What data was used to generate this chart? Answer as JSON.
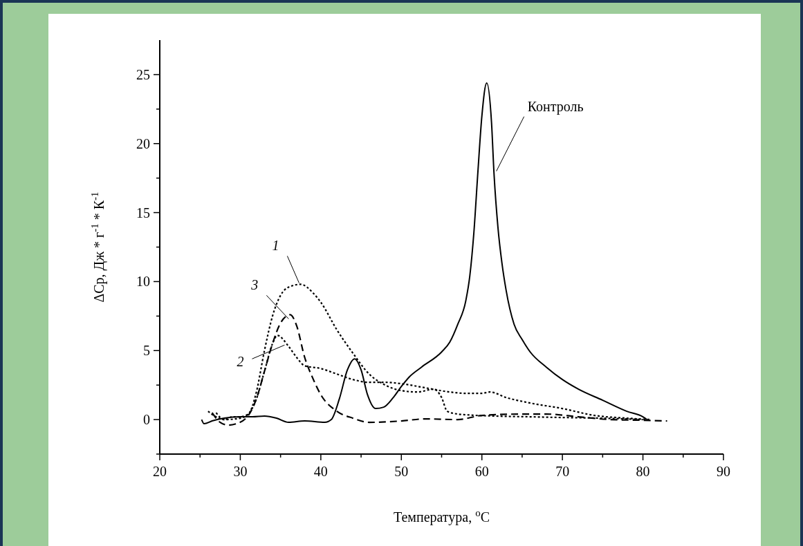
{
  "chart_data": {
    "type": "line",
    "xlabel": "Температура, $^{o}$C",
    "ylabel": "ΔCp, Дж * г$^{-1}$ * К$^{-1}$",
    "xlim": [
      20,
      90
    ],
    "xticks": [
      20,
      {
        "value": 25,
        "label": null
      },
      30,
      {
        "value": 35,
        "label": null
      },
      40,
      {
        "value": 45,
        "label": null
      },
      50,
      {
        "value": 55,
        "label": null
      },
      60,
      {
        "value": 65,
        "label": null
      },
      70,
      {
        "value": 75,
        "label": null
      },
      80,
      {
        "value": 85,
        "label": null
      },
      90
    ],
    "ylim": [
      -2.5,
      27.5
    ],
    "yticks": [
      {
        "value": -2.5,
        "label": null
      },
      0,
      {
        "value": 2.5,
        "label": null
      },
      5,
      {
        "value": 7.5,
        "label": null
      },
      10,
      {
        "value": 12.5,
        "label": null
      },
      15,
      {
        "value": 17.5,
        "label": null
      },
      20,
      {
        "value": 22.5,
        "label": null
      },
      25
    ],
    "grid": false,
    "marker": "none",
    "series": [
      {
        "color": "#000000",
        "line_style": "solid",
        "x": [
          25.2,
          25.5,
          26.5,
          28,
          30,
          31.5,
          33,
          34.5,
          36,
          38,
          40.5,
          41.3,
          42.3,
          43.3,
          44.2,
          45,
          45.8,
          46.8,
          47.8,
          49,
          50,
          51,
          52.5,
          55,
          56,
          57,
          58,
          58.5,
          59,
          59.5,
          60,
          60.6,
          61.2,
          61.5,
          62,
          62.5,
          63,
          64,
          65,
          66,
          68,
          70,
          72,
          75,
          78,
          80,
          80.5
        ],
        "values": [
          0,
          -0.3,
          -0.1,
          0.1,
          0.2,
          0.2,
          0.25,
          0.1,
          -0.2,
          -0.1,
          -0.2,
          0,
          1.5,
          3.6,
          4.4,
          3.6,
          1.8,
          0.8,
          0.9,
          1.6,
          2.4,
          3.1,
          3.8,
          4.9,
          5.6,
          6.9,
          8.6,
          10.4,
          13.5,
          17.9,
          22,
          24.4,
          21.5,
          17.9,
          13.9,
          11.3,
          9.4,
          6.9,
          5.8,
          4.9,
          3.8,
          2.9,
          2.2,
          1.4,
          0.6,
          0.2,
          0
        ]
      },
      {
        "color": "#000000",
        "line_style": "dotted",
        "x": [
          27,
          28,
          29,
          30,
          31,
          32,
          33,
          34,
          35,
          36,
          37.5,
          39,
          40,
          42,
          44,
          46,
          48,
          50,
          52,
          54,
          55,
          55.7,
          57,
          58,
          62,
          66,
          70,
          75,
          80
        ],
        "values": [
          0.5,
          0,
          0.2,
          0.2,
          0.4,
          2,
          5,
          7.5,
          9,
          9.6,
          9.8,
          9.2,
          8.5,
          6.5,
          4.8,
          3.3,
          2.5,
          2.1,
          2,
          2.2,
          1.6,
          0.6,
          0.4,
          0.35,
          0.25,
          0.2,
          0.15,
          0.1,
          0
        ]
      },
      {
        "color": "#000000",
        "line_style": "dotted",
        "x": [
          26,
          27,
          28,
          30,
          31,
          32,
          33,
          34,
          34.6,
          36,
          37,
          38,
          40,
          42,
          44,
          46,
          48,
          50,
          53,
          56,
          58,
          60,
          61,
          63,
          66,
          70,
          74,
          78,
          81
        ],
        "values": [
          0.6,
          0.2,
          0,
          0.1,
          0.4,
          1.5,
          3.5,
          5.5,
          6.1,
          5.3,
          4.5,
          3.9,
          3.7,
          3.3,
          2.9,
          2.7,
          2.7,
          2.6,
          2.3,
          2,
          1.9,
          1.9,
          2,
          1.6,
          1.2,
          0.8,
          0.3,
          0.1,
          0
        ]
      },
      {
        "color": "#000000",
        "line_style": "dashed",
        "x": [
          26.5,
          27.5,
          28.5,
          29.5,
          31,
          32,
          33,
          34,
          35,
          36.2,
          37,
          38,
          39,
          40,
          42,
          44,
          46,
          50,
          53,
          57,
          60,
          65,
          68,
          72,
          76,
          80,
          83
        ],
        "values": [
          0.5,
          -0.2,
          -0.4,
          -0.3,
          0.3,
          1.5,
          3.5,
          5.5,
          7,
          7.6,
          6.8,
          4.5,
          3,
          1.8,
          0.6,
          0.1,
          -0.2,
          -0.1,
          0.05,
          0,
          0.3,
          0.4,
          0.4,
          0.2,
          0,
          -0.05,
          -0.1
        ]
      }
    ],
    "annotations": [
      {
        "text": "Контроль",
        "x": 61.8,
        "y": 18
      },
      {
        "text": "1",
        "x": 37.3,
        "y": 9.9
      },
      {
        "text": "3",
        "x": 36,
        "y": 7.3
      },
      {
        "text": "2",
        "x": 35.5,
        "y": 5.4
      }
    ]
  }
}
